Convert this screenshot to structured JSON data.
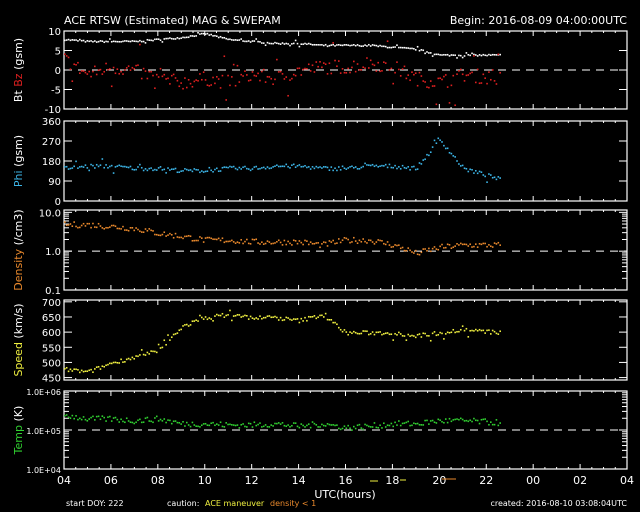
{
  "title": "ACE RTSW (Estimated) MAG & SWEPAM",
  "begin": "Begin: 2016-08-09 04:00:00UTC",
  "footer": {
    "start_doy": "start DOY: 222",
    "caution": "caution:",
    "maneuver": "ACE maneuver",
    "density_note": "density < 1",
    "created": "created: 2016-08-10 03:08:04UTC"
  },
  "colors": {
    "bt": "#ffffff",
    "bz": "#e02020",
    "phi": "#3cb4e6",
    "density": "#e8882c",
    "speed": "#f0f040",
    "temp": "#30d030"
  },
  "chart_data": {
    "type": "scatter",
    "title": "ACE RTSW (Estimated) MAG & SWEPAM",
    "xlabel": "UTC(hours)",
    "xlim": [
      0,
      24
    ],
    "x_tick_labels": [
      "04",
      "06",
      "08",
      "10",
      "12",
      "14",
      "16",
      "18",
      "20",
      "22",
      "00",
      "02",
      "04"
    ],
    "hours": [
      0,
      1,
      2,
      3,
      4,
      5,
      6,
      7,
      8,
      9,
      10,
      11,
      12,
      13,
      14,
      15,
      16,
      17,
      18.6
    ],
    "panels": [
      {
        "id": "mag",
        "ylabel_parts": [
          "Bt",
          "Bz",
          "(gsm)"
        ],
        "ylim": [
          -10,
          10
        ],
        "scale": "linear",
        "ticks": [
          "10",
          "5",
          "0",
          "-5",
          "-10"
        ],
        "tick_values": [
          10,
          5,
          0,
          -5,
          -10
        ],
        "dashed_at": 0,
        "series": [
          {
            "name": "Bt",
            "color_key": "bt",
            "values": [
              8,
              7.5,
              7.5,
              7.5,
              8,
              8.5,
              9.5,
              8,
              7.5,
              7,
              7,
              6.5,
              6.5,
              6.5,
              6,
              5.5,
              4,
              4,
              4
            ]
          },
          {
            "name": "Bz",
            "color_key": "bz",
            "values": [
              3,
              -1,
              1,
              0,
              -2,
              -3,
              -2,
              -3,
              -1,
              -2,
              0,
              1,
              1,
              2,
              1,
              -2,
              -3,
              -1,
              -2
            ]
          }
        ]
      },
      {
        "id": "phi",
        "ylabel_parts": [
          "Phi",
          "(gsm)"
        ],
        "ylim": [
          0,
          360
        ],
        "scale": "linear",
        "ticks": [
          "360",
          "270",
          "180",
          "90",
          "0"
        ],
        "tick_values": [
          360,
          270,
          180,
          90,
          0
        ],
        "series": [
          {
            "name": "Phi",
            "color_key": "phi",
            "values": [
              150,
              160,
              160,
              150,
              150,
              140,
              140,
              150,
              150,
              160,
              160,
              150,
              150,
              160,
              160,
              150,
              280,
              150,
              100
            ]
          }
        ]
      },
      {
        "id": "density",
        "ylabel_parts": [
          "Density",
          "(/cm3)"
        ],
        "ylim": [
          0.1,
          11.5
        ],
        "scale": "log",
        "ticks": [
          "10.0",
          "1.0",
          "0.1"
        ],
        "tick_values": [
          10,
          1,
          0.1
        ],
        "dashed_at": 1,
        "series": [
          {
            "name": "Density",
            "color_key": "density",
            "values": [
              5,
              5,
              4.5,
              4,
              3,
              2.5,
              2,
              2,
              1.8,
              1.8,
              1.8,
              1.5,
              2,
              2,
              1.5,
              0.9,
              1.3,
              1.5,
              1.5
            ]
          }
        ]
      },
      {
        "id": "speed",
        "ylabel_parts": [
          "Speed",
          "(km/s)"
        ],
        "ylim": [
          442,
          706
        ],
        "scale": "linear",
        "ticks": [
          "700",
          "650",
          "600",
          "550",
          "500",
          "450"
        ],
        "tick_values": [
          700,
          650,
          600,
          550,
          500,
          450
        ],
        "series": [
          {
            "name": "Speed",
            "color_key": "speed",
            "values": [
              480,
              470,
              500,
              520,
              540,
              620,
              650,
              660,
              650,
              650,
              640,
              660,
              600,
              600,
              600,
              590,
              600,
              610,
              600
            ]
          }
        ]
      },
      {
        "id": "temp",
        "ylabel_parts": [
          "Temp",
          "(K)"
        ],
        "ylim": [
          10000,
          1000000
        ],
        "scale": "log",
        "ticks": [
          "1.0E+06",
          "1.0E+05",
          "1.0E+04"
        ],
        "tick_values": [
          1000000,
          100000,
          10000
        ],
        "dashed_at": 100000,
        "series": [
          {
            "name": "Temp",
            "color_key": "temp",
            "values": [
              250000,
              200000,
              200000,
              180000,
              200000,
              150000,
              150000,
              140000,
              140000,
              150000,
              130000,
              150000,
              120000,
              130000,
              150000,
              150000,
              180000,
              180000,
              160000
            ]
          }
        ]
      }
    ]
  }
}
